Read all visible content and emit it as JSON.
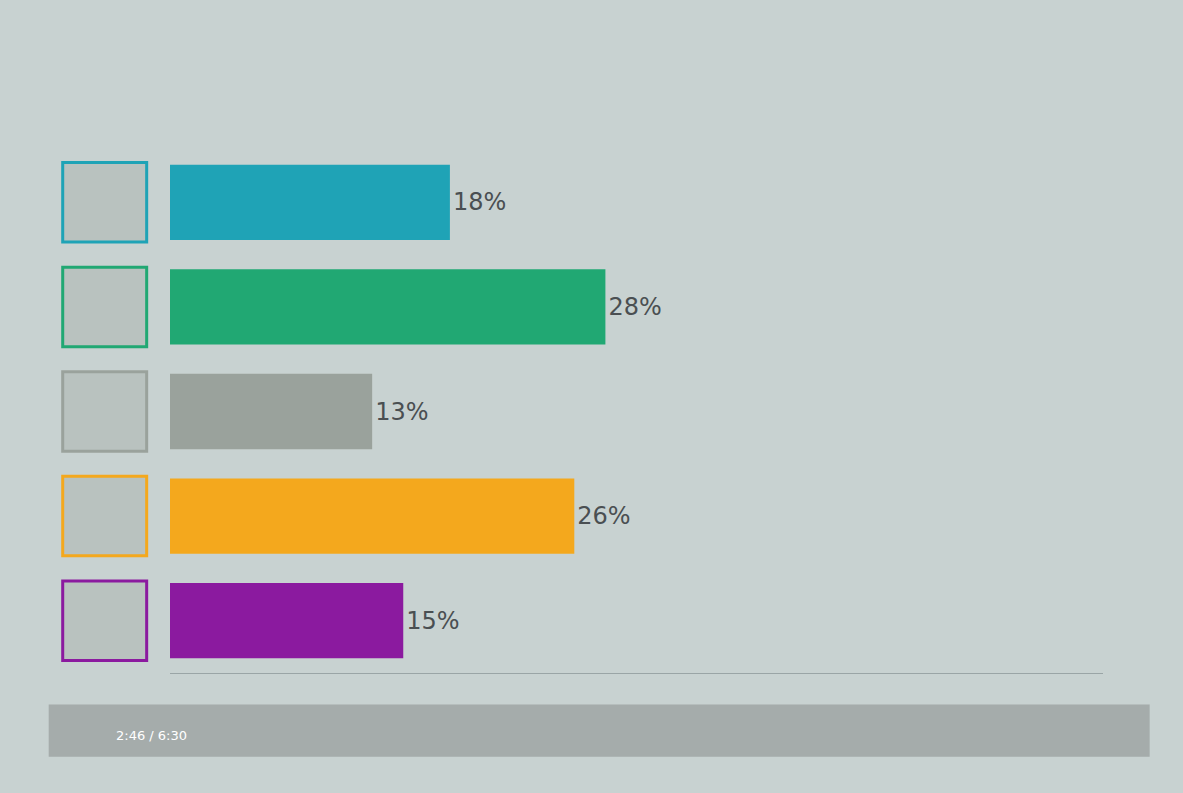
{
  "chart_data": {
    "type": "bar",
    "orientation": "horizontal",
    "categories": [
      null,
      null,
      null,
      null,
      null
    ],
    "values": [
      18,
      28,
      13,
      26,
      15
    ],
    "value_labels": [
      "18%",
      "28%",
      "13%",
      "26%",
      "15%"
    ],
    "colors": [
      "#1fa3b6",
      "#21a873",
      "#9aa29c",
      "#f4a81d",
      "#8b1a9f"
    ],
    "xlim": [
      0,
      60
    ],
    "xticks": [],
    "tick_labels": false,
    "grid": false,
    "data_labels": true,
    "annotations": [
      "2:46 / 6:30"
    ]
  }
}
